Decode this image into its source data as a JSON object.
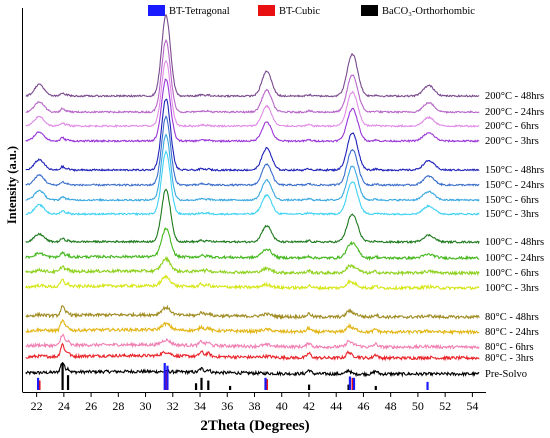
{
  "chart_data": {
    "type": "line",
    "title": "",
    "xlabel": "2Theta (Degrees)",
    "ylabel": "Intensity (a.u.)",
    "xlim": [
      21,
      55
    ],
    "x_ticks": [
      22,
      24,
      26,
      28,
      30,
      32,
      34,
      36,
      38,
      40,
      42,
      44,
      46,
      48,
      50,
      52,
      54
    ],
    "grid": false,
    "legend_position": "top",
    "legend": [
      {
        "name": "BT-Tetragonal",
        "color": "#1a1aff"
      },
      {
        "name": "BT-Cubic",
        "color": "#e81010"
      },
      {
        "name": "BaCO₃-Orthorhombic",
        "color": "#000000"
      }
    ],
    "series": [
      {
        "name": "Pre-Solvo",
        "color": "#000000",
        "baseline": 0,
        "crystallinity": 0.0,
        "carbonate": 0.9
      },
      {
        "name": "80°C - 3hrs",
        "color": "#e8242a",
        "baseline": 16,
        "crystallinity": 0.06,
        "carbonate": 1.1
      },
      {
        "name": "80°C - 6hrs",
        "color": "#f07fb2",
        "baseline": 27,
        "crystallinity": 0.08,
        "carbonate": 1.0
      },
      {
        "name": "80°C - 24hrs",
        "color": "#e3b617",
        "baseline": 42,
        "crystallinity": 0.1,
        "carbonate": 0.9
      },
      {
        "name": "80°C - 48hrs",
        "color": "#a08c22",
        "baseline": 57,
        "crystallinity": 0.12,
        "carbonate": 0.8
      },
      {
        "name": "100°C - 3hrs",
        "color": "#d6e619",
        "baseline": 86,
        "crystallinity": 0.15,
        "carbonate": 0.6
      },
      {
        "name": "100°C - 6hrs",
        "color": "#8ed11f",
        "baseline": 101,
        "crystallinity": 0.2,
        "carbonate": 0.5
      },
      {
        "name": "100°C - 24hrs",
        "color": "#45b81f",
        "baseline": 116,
        "crystallinity": 0.45,
        "carbonate": 0.4
      },
      {
        "name": "100°C - 48hrs",
        "color": "#1e7a1e",
        "baseline": 132,
        "crystallinity": 0.85,
        "carbonate": 0.3
      },
      {
        "name": "150°C - 3hrs",
        "color": "#3fd2f2",
        "baseline": 160,
        "crystallinity": 1.0,
        "carbonate": 0.3
      },
      {
        "name": "150°C - 6hrs",
        "color": "#3aa8e0",
        "baseline": 174,
        "crystallinity": 1.05,
        "carbonate": 0.3
      },
      {
        "name": "150°C - 24hrs",
        "color": "#3a6ecc",
        "baseline": 189,
        "crystallinity": 1.1,
        "carbonate": 0.3
      },
      {
        "name": "150°C - 48hrs",
        "color": "#1f22b8",
        "baseline": 204,
        "crystallinity": 1.15,
        "carbonate": 0.3
      },
      {
        "name": "200°C - 3hrs",
        "color": "#9a37d8",
        "baseline": 233,
        "crystallinity": 1.0,
        "carbonate": 0.3
      },
      {
        "name": "200°C - 6hrs",
        "color": "#e08ce6",
        "baseline": 248,
        "crystallinity": 1.05,
        "carbonate": 0.3
      },
      {
        "name": "200°C - 24hrs",
        "color": "#b766c8",
        "baseline": 262,
        "crystallinity": 1.15,
        "carbonate": 0.3
      },
      {
        "name": "200°C - 48hrs",
        "color": "#7a4b8e",
        "baseline": 278,
        "crystallinity": 1.3,
        "carbonate": 0.3
      }
    ],
    "batio3_peaks": [
      {
        "x": 22.2,
        "h": 9,
        "w": 0.35
      },
      {
        "x": 31.5,
        "h": 62,
        "w": 0.32
      },
      {
        "x": 38.9,
        "h": 19,
        "w": 0.35
      },
      {
        "x": 45.2,
        "h": 32,
        "w": 0.38
      },
      {
        "x": 50.8,
        "h": 8,
        "w": 0.4
      }
    ],
    "baco3_peaks": [
      {
        "x": 23.9,
        "h": 11,
        "w": 0.14
      },
      {
        "x": 24.3,
        "h": 4,
        "w": 0.12
      },
      {
        "x": 34.1,
        "h": 4,
        "w": 0.15
      },
      {
        "x": 34.6,
        "h": 3,
        "w": 0.15
      },
      {
        "x": 42.0,
        "h": 4,
        "w": 0.15
      },
      {
        "x": 44.9,
        "h": 4,
        "w": 0.15
      },
      {
        "x": 46.9,
        "h": 3,
        "w": 0.15
      }
    ],
    "reference_sticks": [
      {
        "phase": "BaCO₃-Orthorhombic",
        "color": "#000000",
        "x": 23.9,
        "h": 1.0
      },
      {
        "phase": "BaCO₃-Orthorhombic",
        "color": "#000000",
        "x": 24.3,
        "h": 0.55
      },
      {
        "phase": "BaCO₃-Orthorhombic",
        "color": "#000000",
        "x": 33.7,
        "h": 0.25
      },
      {
        "phase": "BaCO₃-Orthorhombic",
        "color": "#000000",
        "x": 34.1,
        "h": 0.45
      },
      {
        "phase": "BaCO₃-Orthorhombic",
        "color": "#000000",
        "x": 34.6,
        "h": 0.35
      },
      {
        "phase": "BaCO₃-Orthorhombic",
        "color": "#000000",
        "x": 36.2,
        "h": 0.15
      },
      {
        "phase": "BaCO₃-Orthorhombic",
        "color": "#000000",
        "x": 42.0,
        "h": 0.2
      },
      {
        "phase": "BaCO₃-Orthorhombic",
        "color": "#000000",
        "x": 44.9,
        "h": 0.2
      },
      {
        "phase": "BaCO₃-Orthorhombic",
        "color": "#000000",
        "x": 46.9,
        "h": 0.15
      },
      {
        "phase": "BT-Cubic",
        "color": "#e81010",
        "x": 22.2,
        "h": 0.35
      },
      {
        "phase": "BT-Cubic",
        "color": "#e81010",
        "x": 31.5,
        "h": 0.7
      },
      {
        "phase": "BT-Cubic",
        "color": "#e81010",
        "x": 38.9,
        "h": 0.4
      },
      {
        "phase": "BT-Cubic",
        "color": "#e81010",
        "x": 45.2,
        "h": 0.45
      },
      {
        "phase": "BT-Tetragonal",
        "color": "#1a1aff",
        "x": 22.1,
        "h": 0.45
      },
      {
        "phase": "BT-Tetragonal",
        "color": "#1a1aff",
        "x": 31.4,
        "h": 1.0
      },
      {
        "phase": "BT-Tetragonal",
        "color": "#1a1aff",
        "x": 31.6,
        "h": 0.9
      },
      {
        "phase": "BT-Tetragonal",
        "color": "#1a1aff",
        "x": 38.8,
        "h": 0.45
      },
      {
        "phase": "BT-Tetragonal",
        "color": "#1a1aff",
        "x": 45.0,
        "h": 0.5
      },
      {
        "phase": "BT-Tetragonal",
        "color": "#1a1aff",
        "x": 45.3,
        "h": 0.45
      },
      {
        "phase": "BT-Tetragonal",
        "color": "#1a1aff",
        "x": 50.7,
        "h": 0.3
      }
    ]
  }
}
